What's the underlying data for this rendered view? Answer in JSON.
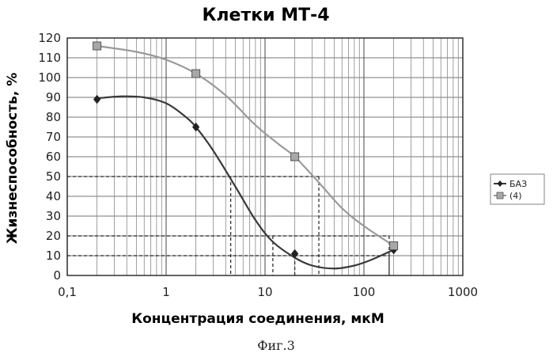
{
  "chart_data": {
    "type": "line",
    "title": "Клетки МТ-4",
    "xlabel": "Концентрация соединения, мкМ",
    "ylabel": "Жизнеспособность, %",
    "x_scale": "log",
    "xlim": [
      0.1,
      1000
    ],
    "ylim": [
      0,
      120
    ],
    "x_ticks": [
      "0,1",
      "1",
      "10",
      "100",
      "1000"
    ],
    "y_ticks": [
      "0",
      "10",
      "20",
      "30",
      "40",
      "50",
      "60",
      "70",
      "80",
      "90",
      "100",
      "110",
      "120"
    ],
    "grid": true,
    "legend_position": "right",
    "series": [
      {
        "name": "БАЗ",
        "color": "#3a3a3a",
        "marker": "diamond",
        "x": [
          0.2,
          2,
          20,
          200
        ],
        "y": [
          89,
          75,
          11,
          13
        ],
        "curve_x": [
          0.2,
          0.35,
          0.6,
          1,
          1.5,
          2,
          3,
          5,
          8,
          12,
          20,
          30,
          50,
          80,
          120,
          200
        ],
        "curve_y": [
          89.5,
          90.5,
          90,
          87,
          81,
          75,
          63,
          45,
          28,
          17,
          9,
          5,
          3.5,
          5,
          8,
          13
        ]
      },
      {
        "name": "(4)",
        "color": "#9a9a9a",
        "marker": "square",
        "x": [
          0.2,
          2,
          20,
          200
        ],
        "y": [
          116,
          102,
          60,
          15
        ],
        "curve_x": [
          0.2,
          0.5,
          1,
          2,
          4,
          8,
          14,
          20,
          35,
          60,
          100,
          200
        ],
        "curve_y": [
          116,
          113,
          109,
          102,
          91,
          76,
          66,
          60,
          47,
          34,
          25,
          15
        ]
      }
    ],
    "reference_lines": [
      {
        "y": 50,
        "x": [
          4.5,
          35
        ]
      },
      {
        "y": 20,
        "x": [
          12,
          180
        ]
      },
      {
        "y": 10,
        "x": [
          20,
          180
        ]
      }
    ]
  },
  "caption": "Фиг.3"
}
